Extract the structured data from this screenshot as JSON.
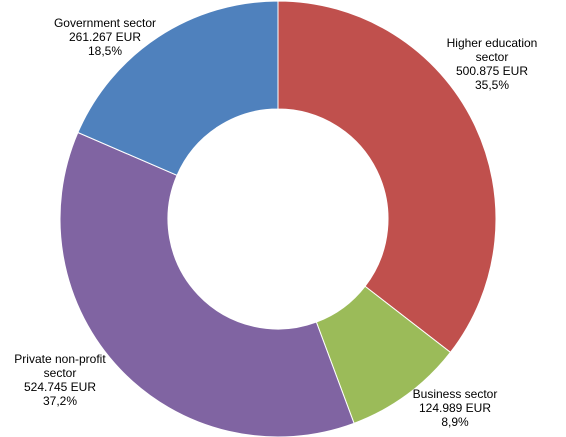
{
  "chart_data": {
    "type": "pie",
    "variant": "donut",
    "legend": "none",
    "categories": [
      "Higher education sector",
      "Business sector",
      "Private non-profit sector",
      "Government sector"
    ],
    "values": [
      500875,
      124989,
      524745,
      261267
    ],
    "value_labels": [
      "500.875 EUR",
      "124.989 EUR",
      "524.745 EUR",
      "261.267 EUR"
    ],
    "percent_labels": [
      "35,5%",
      "8,9%",
      "37,2%",
      "18,5%"
    ],
    "label_lines": [
      [
        "Higher education",
        "sector",
        "500.875 EUR",
        "35,5%"
      ],
      [
        "Business sector",
        "124.989 EUR",
        "8,9%"
      ],
      [
        "Private non-profit",
        "sector",
        "524.745 EUR",
        "37,2%"
      ],
      [
        "Government sector",
        "261.267 EUR",
        "18,5%"
      ]
    ],
    "colors": [
      "#C0504D",
      "#9BBB59",
      "#8064A2",
      "#4F81BD"
    ]
  }
}
